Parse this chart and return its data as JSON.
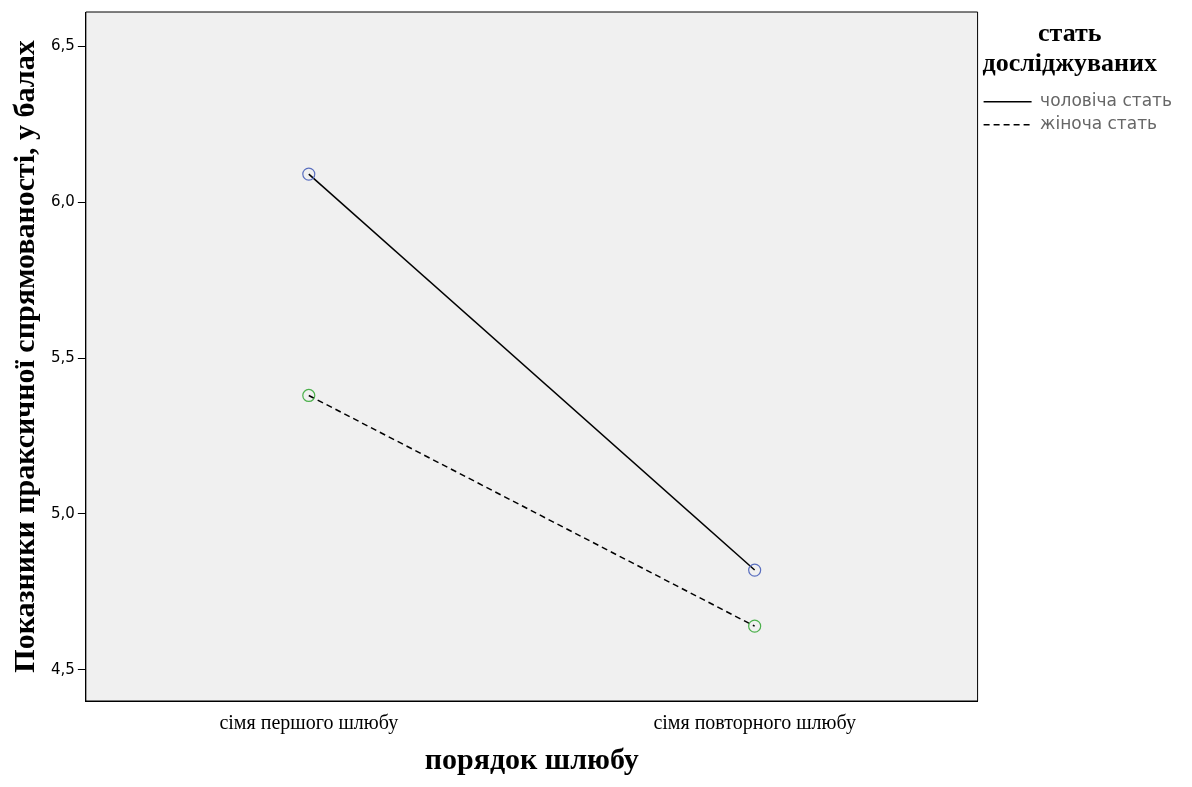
{
  "chart_data": {
    "type": "line",
    "xlabel": "порядок шлюбу",
    "ylabel": "Показники праксичної спрямованості, у балах",
    "legend_title": "стать досліджуваних",
    "categories": [
      "сімя першого шлюбу",
      "сімя повторного шлюбу"
    ],
    "series": [
      {
        "name": "чоловіча стать",
        "color": "#000000",
        "colors": [
          "#5a6fbf",
          "#5a6fbf"
        ],
        "line_style": "solid",
        "values": [
          6.09,
          4.82
        ]
      },
      {
        "name": "жіноча стать",
        "color": "#000000",
        "colors": [
          "#4cb04c",
          "#4cb04c"
        ],
        "line_style": "dashed",
        "values": [
          5.38,
          4.64
        ]
      }
    ],
    "ylim": [
      4.4,
      6.61
    ],
    "yticks": [
      {
        "value": 4.5,
        "label": "4,5"
      },
      {
        "value": 5,
        "label": "5,0"
      },
      {
        "value": 5.5,
        "label": "5,5"
      },
      {
        "value": 6,
        "label": "6,0"
      },
      {
        "value": 6.5,
        "label": "6,5"
      }
    ],
    "grid": false,
    "legend": "right",
    "marker": "circle"
  }
}
